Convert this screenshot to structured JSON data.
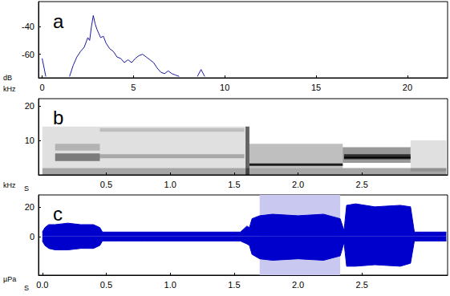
{
  "chart_data": [
    {
      "type": "line",
      "label": "a",
      "xlabel": "kHz",
      "ylabel": "dB",
      "color": "#1a1aa0",
      "x": [
        0,
        0.2,
        0.3,
        1.5,
        1.7,
        1.9,
        2.1,
        2.3,
        2.5,
        2.6,
        2.7,
        2.8,
        2.9,
        3.0,
        3.1,
        3.2,
        3.35,
        3.5,
        3.7,
        3.9,
        4.1,
        4.3,
        4.5,
        4.7,
        4.9,
        5.1,
        5.3,
        5.5,
        5.7,
        5.9,
        6.1,
        6.3,
        6.5,
        6.7,
        6.9,
        7.1,
        7.3,
        7.5,
        7.6,
        8.5,
        8.7,
        8.9
      ],
      "values": [
        -63,
        -76,
        null,
        -76,
        -68,
        -62,
        -58,
        -55,
        -48,
        -50,
        -40,
        -32,
        -38,
        -42,
        -45,
        -48,
        -47,
        -52,
        -56,
        -58,
        -62,
        -63,
        -66,
        -64,
        -66,
        -63,
        -61,
        -60,
        -62,
        -64,
        -66,
        -70,
        -73,
        -74,
        -72,
        -74,
        -75,
        -76,
        null,
        -76,
        -71,
        -76
      ],
      "xlim": [
        -0.2,
        22.2
      ],
      "xticks": [
        0,
        5,
        10,
        15,
        20
      ],
      "ylim": [
        -77,
        -22
      ],
      "yticks": [
        -60,
        -40
      ]
    },
    {
      "type": "spectrogram",
      "label": "b",
      "xlabel": "S",
      "ylabel": "kHz",
      "color": "#000000",
      "bands": [
        {
          "start": 0,
          "end": 3.16,
          "low": 0,
          "high": 2,
          "intensity": 0.35
        },
        {
          "start": 0,
          "end": 1.6,
          "low": 2,
          "high": 14,
          "intensity": 0.12
        },
        {
          "start": 0.1,
          "end": 0.45,
          "low": 4,
          "high": 6.2,
          "intensity": 0.45
        },
        {
          "start": 0.1,
          "end": 0.45,
          "low": 7,
          "high": 9,
          "intensity": 0.2
        },
        {
          "start": 0.45,
          "end": 1.58,
          "low": 4.8,
          "high": 6,
          "intensity": 0.25
        },
        {
          "start": 0.45,
          "end": 1.58,
          "low": 12.5,
          "high": 13.5,
          "intensity": 0.15
        },
        {
          "start": 1.59,
          "end": 1.62,
          "low": 0,
          "high": 14,
          "intensity": 0.6
        },
        {
          "start": 1.62,
          "end": 2.35,
          "low": 2,
          "high": 9,
          "intensity": 0.25
        },
        {
          "start": 1.62,
          "end": 2.35,
          "low": 2.6,
          "high": 3.3,
          "intensity": 0.85
        },
        {
          "start": 2.35,
          "end": 2.88,
          "low": 3.5,
          "high": 8,
          "intensity": 0.4
        },
        {
          "start": 2.36,
          "end": 2.88,
          "low": 4.5,
          "high": 6,
          "intensity": 0.7
        },
        {
          "start": 2.36,
          "end": 2.88,
          "low": 4.8,
          "high": 5.2,
          "intensity": 0.95
        },
        {
          "start": 2.88,
          "end": 3.16,
          "low": 1,
          "high": 10,
          "intensity": 0.12
        }
      ],
      "xlim": [
        -0.03,
        3.17
      ],
      "xticks": [
        0.5,
        {
          "value": 1,
          "label": "1.0"
        },
        1.5,
        {
          "value": 2,
          "label": "2.0"
        },
        2.5
      ],
      "ylim": [
        0,
        22.05
      ],
      "yticks": [
        10,
        20
      ]
    },
    {
      "type": "area",
      "label": "c",
      "xlabel": "S",
      "ylabel": "µPa",
      "color": "#0000cc",
      "x": [
        0,
        0.02,
        0.05,
        0.1,
        0.2,
        0.3,
        0.4,
        0.45,
        0.47,
        0.6,
        0.8,
        1.0,
        1.2,
        1.4,
        1.55,
        1.6,
        1.62,
        1.64,
        1.7,
        1.8,
        2.0,
        2.2,
        2.33,
        2.36,
        2.38,
        2.45,
        2.6,
        2.8,
        2.88,
        2.91,
        2.95,
        3.1,
        3.16
      ],
      "upper": [
        3,
        6,
        8,
        8,
        9,
        8,
        8,
        6,
        3,
        3,
        3,
        3,
        3,
        3,
        3,
        7,
        6,
        12,
        14,
        15,
        14,
        15,
        12,
        4,
        21,
        22,
        20,
        21,
        20,
        3,
        3,
        3,
        3
      ],
      "lower": [
        -3,
        -6,
        -8,
        -9,
        -9,
        -8,
        -8,
        -6,
        -3,
        -3,
        -3,
        -3,
        -3,
        -3,
        -3,
        -5,
        -6,
        -12,
        -15,
        -16,
        -15,
        -16,
        -13,
        -4,
        -20,
        -20,
        -19,
        -20,
        -18,
        -3,
        -3,
        -3,
        -3
      ],
      "highlight": {
        "start": 1.7,
        "end": 2.33,
        "color": "#c8c8f0"
      },
      "xlim": [
        -0.03,
        3.17
      ],
      "xticks": [
        {
          "value": 0,
          "label": "0.0"
        },
        0.5,
        {
          "value": 1,
          "label": "1.0"
        },
        1.5,
        {
          "value": 2,
          "label": "2.0"
        },
        2.5
      ],
      "ylim": [
        -26,
        28
      ],
      "yticks": [
        0,
        20
      ]
    }
  ]
}
